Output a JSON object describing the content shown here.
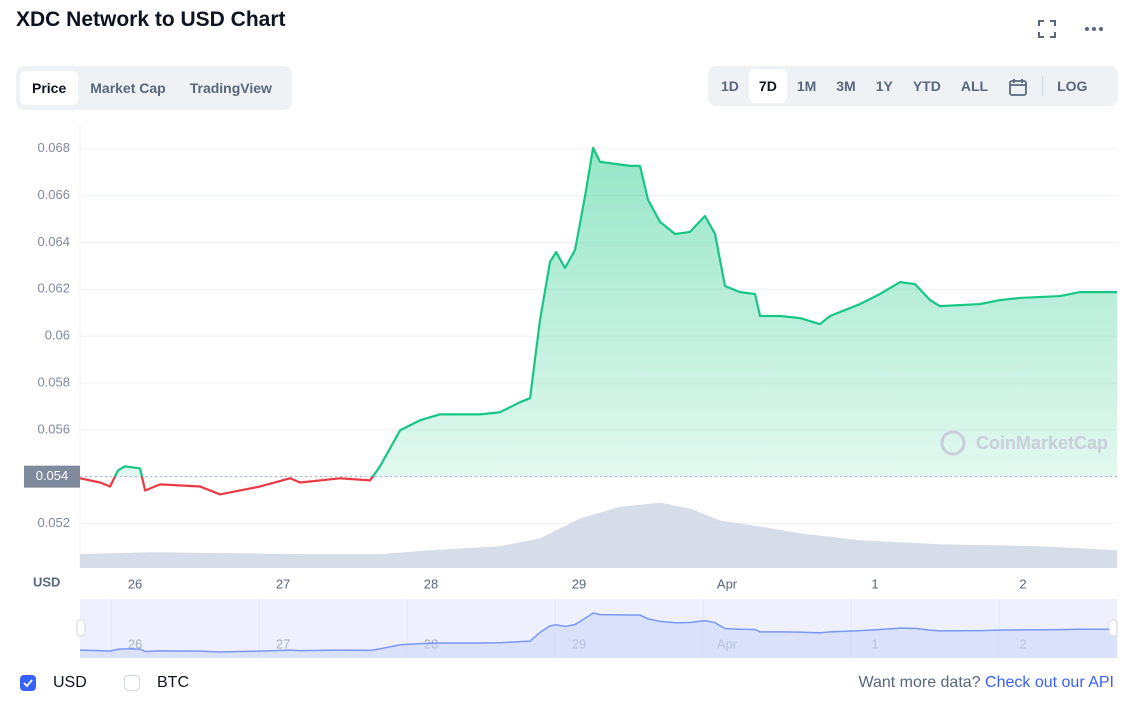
{
  "header": {
    "title": "XDC Network to USD Chart"
  },
  "tabs": [
    "Price",
    "Market Cap",
    "TradingView"
  ],
  "active_tab": 0,
  "ranges": [
    "1D",
    "7D",
    "1M",
    "3M",
    "1Y",
    "YTD",
    "ALL"
  ],
  "active_range": 1,
  "log_label": "LOG",
  "chart_data": {
    "type": "line",
    "y_axis_label": "USD",
    "watermark": "CoinMarketCap",
    "xlim": [
      25.628,
      32.635
    ],
    "xticks": [
      26,
      27,
      28,
      29,
      {
        "value": 30,
        "label": "Apr"
      },
      {
        "value": 31,
        "label": "1"
      },
      {
        "value": 32,
        "label": "2"
      }
    ],
    "ylim": [
      0.0501,
      0.0691
    ],
    "yticks": [
      0.052,
      0.054,
      0.056,
      0.058,
      0.06,
      0.062,
      0.064,
      0.066,
      0.068
    ],
    "grid": true,
    "baseline": 0.054,
    "series": [
      {
        "color": "#16c784",
        "color_below": "#ea3943",
        "x": [
          25.628,
          25.764,
          25.831,
          25.885,
          25.932,
          26.034,
          26.068,
          26.169,
          26.439,
          26.574,
          26.709,
          26.845,
          27.047,
          27.115,
          27.385,
          27.588,
          27.655,
          27.791,
          27.926,
          28.061,
          28.331,
          28.466,
          28.601,
          28.669,
          28.736,
          28.804,
          28.845,
          28.905,
          28.973,
          29.041,
          29.095,
          29.142,
          29.345,
          29.412,
          29.466,
          29.547,
          29.649,
          29.75,
          29.851,
          29.919,
          29.986,
          30.088,
          30.189,
          30.223,
          30.358,
          30.493,
          30.628,
          30.696,
          30.899,
          31.034,
          31.169,
          31.27,
          31.372,
          31.439,
          31.709,
          31.845,
          31.98,
          32.25,
          32.385,
          32.635
        ],
        "values": [
          0.05393,
          0.05375,
          0.05358,
          0.05427,
          0.05444,
          0.05435,
          0.05341,
          0.05367,
          0.05358,
          0.05324,
          0.05341,
          0.05358,
          0.05393,
          0.05375,
          0.05393,
          0.05384,
          0.05444,
          0.05598,
          0.05641,
          0.05666,
          0.05666,
          0.05675,
          0.05718,
          0.05735,
          0.06068,
          0.06317,
          0.06359,
          0.06291,
          0.06368,
          0.06599,
          0.06804,
          0.06744,
          0.06727,
          0.06727,
          0.06582,
          0.06488,
          0.06436,
          0.06445,
          0.06513,
          0.06436,
          0.06214,
          0.06188,
          0.0618,
          0.06086,
          0.06086,
          0.06077,
          0.06051,
          0.06086,
          0.06137,
          0.0618,
          0.06231,
          0.06222,
          0.06154,
          0.06128,
          0.06137,
          0.06154,
          0.06163,
          0.06171,
          0.06188,
          0.06188
        ]
      }
    ],
    "volume": {
      "color": "#cfd6e4",
      "vlim": [
        0,
        450
      ],
      "x": [
        25.628,
        26.101,
        27.115,
        27.655,
        27.993,
        28.466,
        28.736,
        29.007,
        29.277,
        29.547,
        29.75,
        29.953,
        30.223,
        30.493,
        30.899,
        31.439,
        32.115,
        32.635
      ],
      "values": [
        14,
        16,
        14,
        14,
        18,
        22,
        30,
        50,
        62,
        66,
        60,
        48,
        42,
        35,
        28,
        24,
        22,
        18
      ]
    }
  },
  "currencies": [
    {
      "label": "USD",
      "checked": true
    },
    {
      "label": "BTC",
      "checked": false
    }
  ],
  "footer": {
    "text": "Want more data?",
    "link": "Check out our API"
  }
}
